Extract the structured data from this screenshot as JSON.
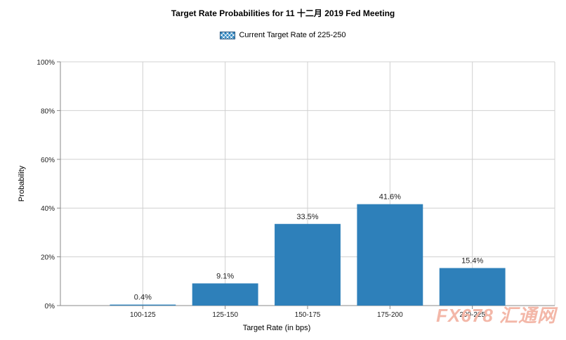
{
  "title": "Target Rate Probabilities for 11 十二月 2019 Fed Meeting",
  "legend": {
    "label": "Current Target Rate of 225-250"
  },
  "watermark": {
    "text": "FX678 汇通网"
  },
  "chart_data": {
    "type": "bar",
    "title": "Target Rate Probabilities for 11 十二月 2019 Fed Meeting",
    "xlabel": "Target Rate (in bps)",
    "ylabel": "Probability",
    "categories": [
      "100-125",
      "125-150",
      "150-175",
      "175-200",
      "200-225"
    ],
    "values": [
      0.4,
      9.1,
      33.5,
      41.6,
      15.4
    ],
    "data_labels": [
      "0.4%",
      "9.1%",
      "33.5%",
      "41.6%",
      "15.4%"
    ],
    "ylim": [
      0,
      100
    ],
    "yticks": [
      "0%",
      "20%",
      "40%",
      "60%",
      "80%",
      "100%"
    ],
    "bar_color": "#2e80ba",
    "grid": true,
    "legend_position": "top-center"
  }
}
